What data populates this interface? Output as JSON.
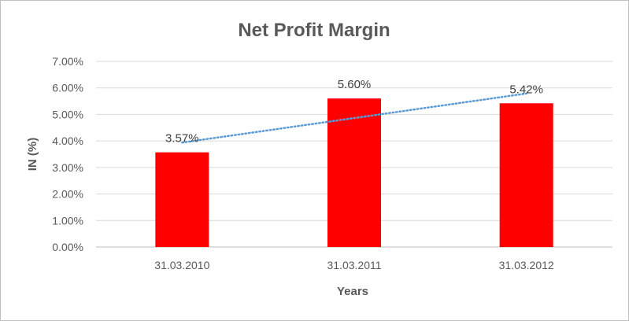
{
  "chart_data": {
    "type": "bar",
    "title": "Net Profit Margin",
    "xlabel": "Years",
    "ylabel": "IN (%)",
    "categories": [
      "31.03.2010",
      "31.03.2011",
      "31.03.2012"
    ],
    "values": [
      3.57,
      5.6,
      5.42
    ],
    "data_labels": [
      "3.57%",
      "5.60%",
      "5.42%"
    ],
    "ylim": [
      0,
      7
    ],
    "yticks": [
      0,
      1,
      2,
      3,
      4,
      5,
      6,
      7
    ],
    "ytick_labels": [
      "0.00%",
      "1.00%",
      "2.00%",
      "3.00%",
      "4.00%",
      "5.00%",
      "6.00%",
      "7.00%"
    ],
    "bar_color": "#ff0000",
    "trendline": {
      "type": "linear",
      "color": "#5b9bd5",
      "style": "dotted"
    },
    "grid": true,
    "legend": "none"
  }
}
